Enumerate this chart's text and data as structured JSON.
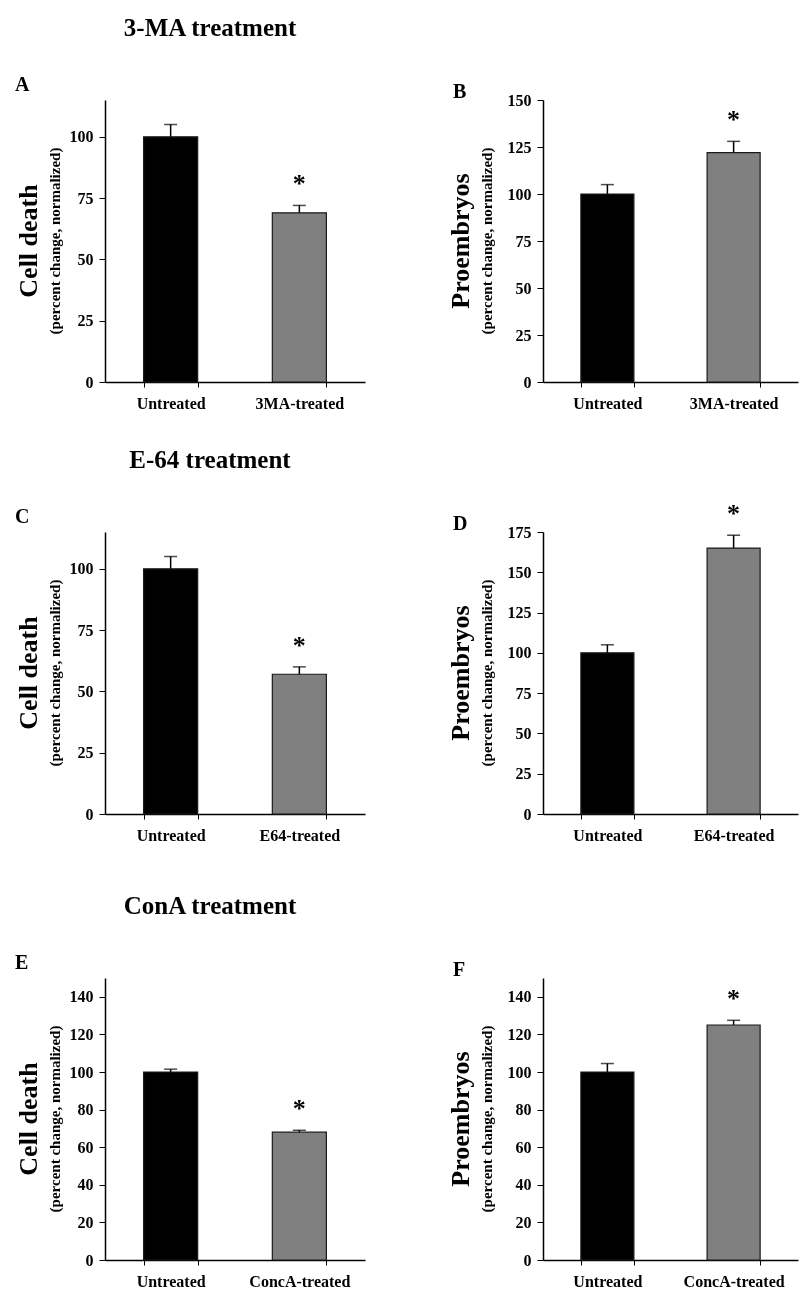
{
  "chart_data": [
    {
      "type": "bar",
      "title": "3-MA treatment",
      "ylabel": "Cell death\n(percent change, normalized)",
      "categories": [
        "Untreated",
        "3MA-treated"
      ],
      "values": [
        100,
        69
      ],
      "errors": [
        5,
        3
      ],
      "colors": [
        "#000000",
        "#808080"
      ],
      "ylim": [
        0,
        115
      ],
      "yticks": [
        0,
        25,
        50,
        75,
        100
      ],
      "annotations": [
        "A",
        {
          "text": "*",
          "x": "3MA-treated",
          "y": 72
        }
      ]
    },
    {
      "type": "bar",
      "ylabel": "Proembryos\n(percent change, normalized)",
      "categories": [
        "Untreated",
        "3MA-treated"
      ],
      "values": [
        100,
        122
      ],
      "errors": [
        5,
        6
      ],
      "colors": [
        "#000000",
        "#808080"
      ],
      "ylim": [
        0,
        150
      ],
      "yticks": [
        0,
        25,
        50,
        75,
        100,
        125,
        150
      ],
      "annotations": [
        "B",
        {
          "text": "*",
          "x": "3MA-treated",
          "y": 128
        }
      ]
    },
    {
      "type": "bar",
      "title": "E-64 treatment",
      "ylabel": "Cell death\n(percent change, normalized)",
      "categories": [
        "Untreated",
        "E64-treated"
      ],
      "values": [
        100,
        57
      ],
      "errors": [
        5,
        3
      ],
      "colors": [
        "#000000",
        "#808080"
      ],
      "ylim": [
        0,
        115
      ],
      "yticks": [
        0,
        25,
        50,
        75,
        100
      ],
      "annotations": [
        "C",
        {
          "text": "*",
          "x": "E64-treated",
          "y": 60
        }
      ]
    },
    {
      "type": "bar",
      "ylabel": "Proembryos\n(percent change, normalized)",
      "categories": [
        "Untreated",
        "E64-treated"
      ],
      "values": [
        100,
        165
      ],
      "errors": [
        5,
        8
      ],
      "colors": [
        "#000000",
        "#808080"
      ],
      "ylim": [
        0,
        175
      ],
      "yticks": [
        0,
        25,
        50,
        75,
        100,
        125,
        150,
        175
      ],
      "annotations": [
        "D",
        {
          "text": "*",
          "x": "E64-treated",
          "y": 173
        }
      ]
    },
    {
      "type": "bar",
      "title": "ConA treatment",
      "ylabel": "Cell death\n(percent change, normalized)",
      "categories": [
        "Untreated",
        "ConcA-treated"
      ],
      "values": [
        100,
        68
      ],
      "errors": [
        1.5,
        1
      ],
      "colors": [
        "#000000",
        "#808080"
      ],
      "ylim": [
        0,
        150
      ],
      "yticks": [
        0,
        20,
        40,
        60,
        80,
        100,
        120,
        140
      ],
      "annotations": [
        "E",
        {
          "text": "*",
          "x": "ConcA-treated",
          "y": 69
        }
      ]
    },
    {
      "type": "bar",
      "ylabel": "Proembryos\n(percent change, normalized)",
      "categories": [
        "Untreated",
        "ConcA-treated"
      ],
      "values": [
        100,
        125
      ],
      "errors": [
        4.5,
        2.5
      ],
      "colors": [
        "#000000",
        "#808080"
      ],
      "ylim": [
        0,
        150
      ],
      "yticks": [
        0,
        20,
        40,
        60,
        80,
        100,
        120,
        140
      ],
      "annotations": [
        "F",
        {
          "text": "*",
          "x": "ConcA-treated",
          "y": 127.5
        }
      ]
    }
  ]
}
